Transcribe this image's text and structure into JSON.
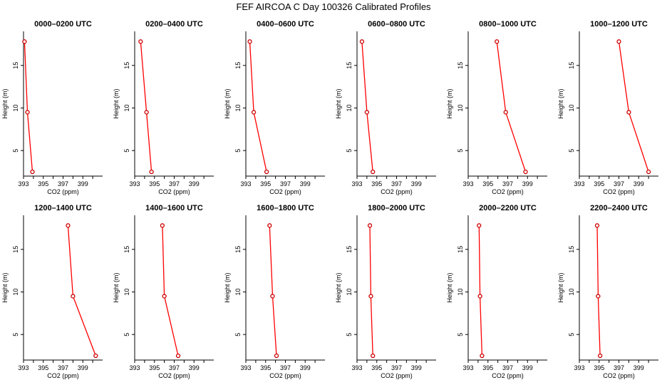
{
  "figure": {
    "title": "FEF AIRCOA C  Day 100326  Calibrated Profiles"
  },
  "chart_data": [
    {
      "type": "line",
      "title": "0000–0200 UTC",
      "xlabel": "CO2 (ppm)",
      "ylabel": "Height (m)",
      "xlim": [
        393,
        401
      ],
      "ylim": [
        2,
        19
      ],
      "xticks": [
        393,
        395,
        397,
        399
      ],
      "yticks": [
        5,
        10,
        15
      ],
      "series": [
        {
          "x": [
            393.9,
            393.4,
            393.1
          ],
          "y": [
            2.5,
            9.5,
            17.8
          ]
        }
      ]
    },
    {
      "type": "line",
      "title": "0200–0400 UTC",
      "xlabel": "CO2 (ppm)",
      "ylabel": "Height (m)",
      "xlim": [
        393,
        401
      ],
      "ylim": [
        2,
        19
      ],
      "xticks": [
        393,
        395,
        397,
        399
      ],
      "yticks": [
        5,
        10,
        15
      ],
      "series": [
        {
          "x": [
            394.7,
            394.2,
            393.6
          ],
          "y": [
            2.5,
            9.5,
            17.8
          ]
        }
      ]
    },
    {
      "type": "line",
      "title": "0400–0600 UTC",
      "xlabel": "CO2 (ppm)",
      "ylabel": "Height (m)",
      "xlim": [
        393,
        401
      ],
      "ylim": [
        2,
        19
      ],
      "xticks": [
        393,
        395,
        397,
        399
      ],
      "yticks": [
        5,
        10,
        15
      ],
      "series": [
        {
          "x": [
            395.1,
            393.8,
            393.4
          ],
          "y": [
            2.5,
            9.5,
            17.8
          ]
        }
      ]
    },
    {
      "type": "line",
      "title": "0600–0800 UTC",
      "xlabel": "CO2 (ppm)",
      "ylabel": "Height (m)",
      "xlim": [
        393,
        401
      ],
      "ylim": [
        2,
        19
      ],
      "xticks": [
        393,
        395,
        397,
        399
      ],
      "yticks": [
        5,
        10,
        15
      ],
      "series": [
        {
          "x": [
            394.6,
            394.0,
            393.5
          ],
          "y": [
            2.5,
            9.5,
            17.8
          ]
        }
      ]
    },
    {
      "type": "line",
      "title": "0800–1000 UTC",
      "xlabel": "CO2 (ppm)",
      "ylabel": "Height (m)",
      "xlim": [
        393,
        401
      ],
      "ylim": [
        2,
        19
      ],
      "xticks": [
        393,
        395,
        397,
        399
      ],
      "yticks": [
        5,
        10,
        15
      ],
      "series": [
        {
          "x": [
            398.8,
            396.8,
            395.9
          ],
          "y": [
            2.5,
            9.5,
            17.8
          ]
        }
      ]
    },
    {
      "type": "line",
      "title": "1000–1200 UTC",
      "xlabel": "CO2 (ppm)",
      "ylabel": "Height (m)",
      "xlim": [
        393,
        401
      ],
      "ylim": [
        2,
        19
      ],
      "xticks": [
        393,
        395,
        397,
        399
      ],
      "yticks": [
        5,
        10,
        15
      ],
      "series": [
        {
          "x": [
            400.0,
            398.0,
            397.0
          ],
          "y": [
            2.5,
            9.5,
            17.8
          ]
        }
      ]
    },
    {
      "type": "line",
      "title": "1200–1400 UTC",
      "xlabel": "CO2 (ppm)",
      "ylabel": "Height (m)",
      "xlim": [
        393,
        401
      ],
      "ylim": [
        2,
        19
      ],
      "xticks": [
        393,
        395,
        397,
        399
      ],
      "yticks": [
        5,
        10,
        15
      ],
      "series": [
        {
          "x": [
            400.3,
            398.0,
            397.5
          ],
          "y": [
            2.5,
            9.5,
            17.8
          ]
        }
      ]
    },
    {
      "type": "line",
      "title": "1400–1600 UTC",
      "xlabel": "CO2 (ppm)",
      "ylabel": "Height (m)",
      "xlim": [
        393,
        401
      ],
      "ylim": [
        2,
        19
      ],
      "xticks": [
        393,
        395,
        397,
        399
      ],
      "yticks": [
        5,
        10,
        15
      ],
      "series": [
        {
          "x": [
            397.4,
            396.0,
            395.8
          ],
          "y": [
            2.5,
            9.5,
            17.8
          ]
        }
      ]
    },
    {
      "type": "line",
      "title": "1600–1800 UTC",
      "xlabel": "CO2 (ppm)",
      "ylabel": "Height (m)",
      "xlim": [
        393,
        401
      ],
      "ylim": [
        2,
        19
      ],
      "xticks": [
        393,
        395,
        397,
        399
      ],
      "yticks": [
        5,
        10,
        15
      ],
      "series": [
        {
          "x": [
            396.1,
            395.7,
            395.4
          ],
          "y": [
            2.5,
            9.5,
            17.8
          ]
        }
      ]
    },
    {
      "type": "line",
      "title": "1800–2000 UTC",
      "xlabel": "CO2 (ppm)",
      "ylabel": "Height (m)",
      "xlim": [
        393,
        401
      ],
      "ylim": [
        2,
        19
      ],
      "xticks": [
        393,
        395,
        397,
        399
      ],
      "yticks": [
        5,
        10,
        15
      ],
      "series": [
        {
          "x": [
            394.6,
            394.4,
            394.3
          ],
          "y": [
            2.5,
            9.5,
            17.8
          ]
        }
      ]
    },
    {
      "type": "line",
      "title": "2000–2200 UTC",
      "xlabel": "CO2 (ppm)",
      "ylabel": "Height (m)",
      "xlim": [
        393,
        401
      ],
      "ylim": [
        2,
        19
      ],
      "xticks": [
        393,
        395,
        397,
        399
      ],
      "yticks": [
        5,
        10,
        15
      ],
      "series": [
        {
          "x": [
            394.4,
            394.2,
            394.1
          ],
          "y": [
            2.5,
            9.5,
            17.8
          ]
        }
      ]
    },
    {
      "type": "line",
      "title": "2200–2400 UTC",
      "xlabel": "CO2 (ppm)",
      "ylabel": "Height (m)",
      "xlim": [
        393,
        401
      ],
      "ylim": [
        2,
        19
      ],
      "xticks": [
        393,
        395,
        397,
        399
      ],
      "yticks": [
        5,
        10,
        15
      ],
      "series": [
        {
          "x": [
            395.1,
            394.9,
            394.8
          ],
          "y": [
            2.5,
            9.5,
            17.8
          ]
        }
      ]
    }
  ],
  "style": {
    "line_color": "#ff0000",
    "marker_color": "#cc0000",
    "axis_color": "#000000"
  }
}
